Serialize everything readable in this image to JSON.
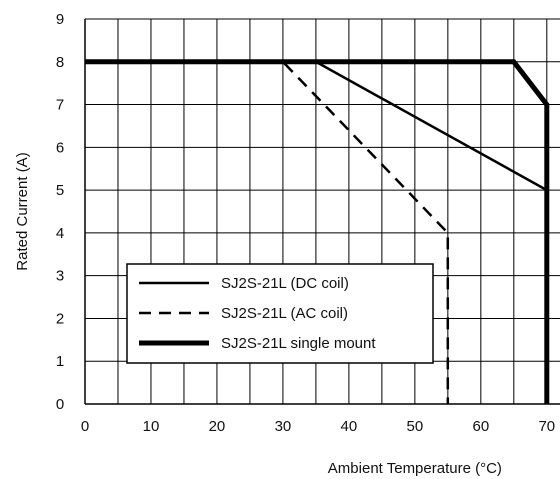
{
  "chart_data": {
    "type": "line",
    "title": "",
    "xlabel": "Ambient Temperature (°C)",
    "ylabel": "Rated Current (A)",
    "xlim": [
      0,
      72
    ],
    "ylim": [
      0,
      9
    ],
    "x_ticks": [
      0,
      10,
      20,
      30,
      40,
      50,
      60,
      70
    ],
    "y_ticks": [
      0,
      1,
      2,
      3,
      4,
      5,
      6,
      7,
      8,
      9
    ],
    "x_grid_step": 5,
    "grid": true,
    "legend_position": "bottom-left",
    "series": [
      {
        "name": "SJ2S-21L (DC coil)",
        "style": "solid",
        "color": "#000000",
        "points": [
          [
            0,
            8
          ],
          [
            35,
            8
          ],
          [
            70,
            5
          ],
          [
            70,
            0
          ]
        ]
      },
      {
        "name": "SJ2S-21L (AC coil)",
        "style": "dashed",
        "color": "#000000",
        "points": [
          [
            0,
            8
          ],
          [
            30,
            8
          ],
          [
            55,
            4
          ],
          [
            55,
            0
          ]
        ]
      },
      {
        "name": "SJ2S-21L single mount",
        "style": "thick",
        "color": "#000000",
        "points": [
          [
            0,
            8
          ],
          [
            65,
            8
          ],
          [
            70,
            7
          ],
          [
            70,
            0
          ]
        ]
      }
    ]
  }
}
